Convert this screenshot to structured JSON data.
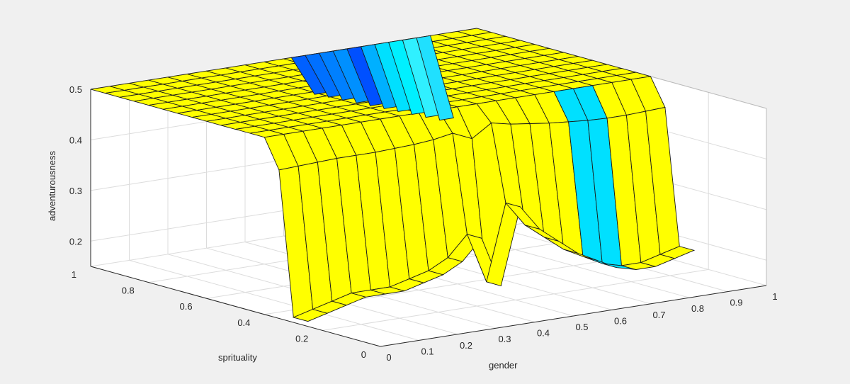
{
  "chart_data": {
    "type": "surface",
    "title": "",
    "xlabel": "gender",
    "ylabel": "spirituality",
    "zlabel": "adventurousness",
    "xlim": [
      0,
      1
    ],
    "ylim": [
      0,
      1
    ],
    "zlim": [
      0.15,
      0.5
    ],
    "x_ticks": [
      "0",
      "0.1",
      "0.2",
      "0.3",
      "0.4",
      "0.5",
      "0.6",
      "0.7",
      "0.8",
      "0.9",
      "1"
    ],
    "y_ticks": [
      "0",
      "0.2",
      "0.4",
      "0.6",
      "0.8",
      "1"
    ],
    "z_ticks": [
      "0.2",
      "0.3",
      "0.4",
      "0.5"
    ],
    "grid": true,
    "base_level": 0.5,
    "trough_start_spirituality": 0.36,
    "trough_min_spirituality": 0.3,
    "trough_edge_values": [
      0.16,
      0.17,
      0.18,
      0.19,
      0.19,
      0.19,
      0.2,
      0.21,
      0.23,
      0.27,
      0.17,
      0.32,
      0.27,
      0.24,
      0.21,
      0.19,
      0.17,
      0.16,
      0.16,
      0.17,
      0.18
    ],
    "series_colors": {
      "high": "#ffff00",
      "low_left": "#0060ff",
      "low_right": "#00e0ff",
      "edge": "#1a1a1a"
    }
  },
  "chart_label": {
    "xlabel": "gender",
    "ylabel": "sprituality",
    "zlabel": "adventurousness"
  }
}
